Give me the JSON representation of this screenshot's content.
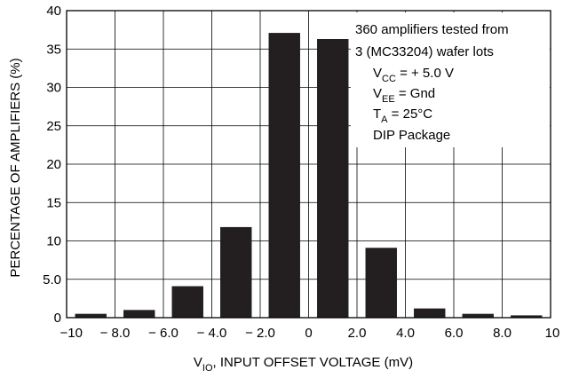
{
  "chart_data": {
    "type": "bar",
    "title": "",
    "xlabel": {
      "prefix": "V",
      "sub": "IO",
      "suffix": ", INPUT OFFSET VOLTAGE (mV)"
    },
    "ylabel": "PERCENTAGE OF AMPLIFIERS (%)",
    "xlim": [
      -10,
      10
    ],
    "ylim": [
      0,
      40
    ],
    "xticks": [
      {
        "value": -10,
        "label": "−10"
      },
      {
        "value": -8,
        "label": "− 8.0"
      },
      {
        "value": -6,
        "label": "− 6.0"
      },
      {
        "value": -4,
        "label": "− 4.0"
      },
      {
        "value": -2,
        "label": "− 2.0"
      },
      {
        "value": 0,
        "label": "0"
      },
      {
        "value": 2,
        "label": "2.0"
      },
      {
        "value": 4,
        "label": "4.0"
      },
      {
        "value": 6,
        "label": "6.0"
      },
      {
        "value": 8,
        "label": "8.0"
      },
      {
        "value": 10,
        "label": "10"
      }
    ],
    "yticks": [
      {
        "value": 0,
        "label": "0"
      },
      {
        "value": 5,
        "label": "5.0"
      },
      {
        "value": 10,
        "label": "10"
      },
      {
        "value": 15,
        "label": "15"
      },
      {
        "value": 20,
        "label": "20"
      },
      {
        "value": 25,
        "label": "25"
      },
      {
        "value": 30,
        "label": "30"
      },
      {
        "value": 35,
        "label": "35"
      },
      {
        "value": 40,
        "label": "40"
      }
    ],
    "grid": true,
    "bin_width": 2,
    "bar_width": 1.3,
    "bars": [
      {
        "center": -9,
        "value": 0.5
      },
      {
        "center": -7,
        "value": 1.0
      },
      {
        "center": -5,
        "value": 4.1
      },
      {
        "center": -3,
        "value": 11.8
      },
      {
        "center": -1,
        "value": 37.1
      },
      {
        "center": 1,
        "value": 36.3
      },
      {
        "center": 3,
        "value": 9.1
      },
      {
        "center": 5,
        "value": 1.2
      },
      {
        "center": 7,
        "value": 0.5
      },
      {
        "center": 9,
        "value": 0.3
      }
    ],
    "annotation": {
      "line1": "360 amplifiers tested  from",
      "line2": "3 (MC33204) wafer lots",
      "vcc": {
        "main": "V",
        "sub": "CC",
        "rest": " = + 5.0 V"
      },
      "vee": {
        "main": "V",
        "sub": "EE",
        "rest": " = Gnd"
      },
      "ta": {
        "main": "T",
        "sub": "A",
        "rest": " = 25°C"
      },
      "line6": "DIP Package"
    },
    "colors": {
      "bar": "#231f20",
      "grid": "#000000",
      "background": "#ffffff"
    }
  }
}
